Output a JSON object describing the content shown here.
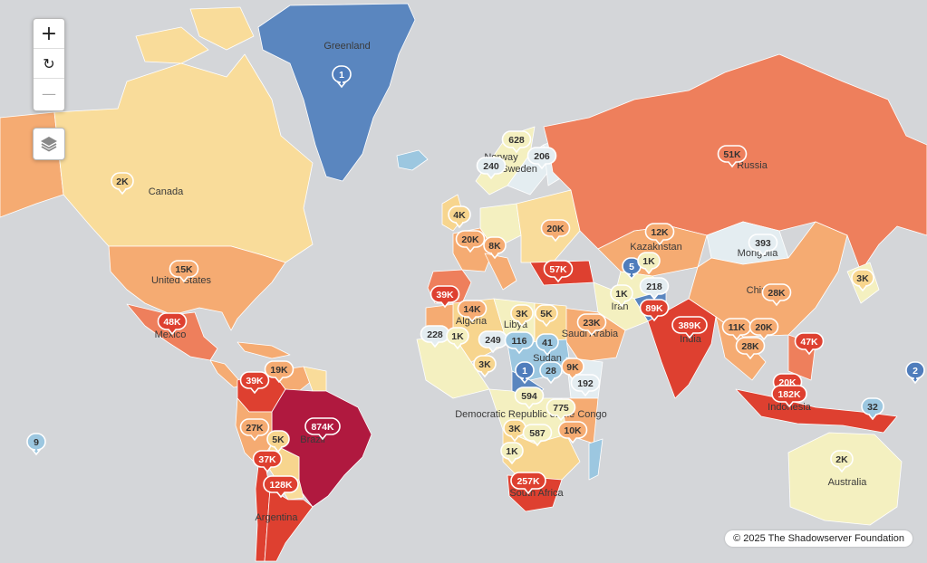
{
  "controls": {
    "zoom_in_label": "+",
    "reset_label": "↻",
    "zoom_out_label": "—",
    "layers_icon": "layers-icon"
  },
  "attribution": "© 2025 The Shadowserver Foundation",
  "legend_colors": {
    "lowest": "#4f7dbc",
    "low": "#9cc7e0",
    "light": "#e4edf1",
    "neutral": "#f4f0c0",
    "medium_low": "#f7d58e",
    "medium": "#f5ab72",
    "high": "#ee7f5c",
    "very_high": "#de4030",
    "highest": "#b0193f"
  },
  "country_labels": [
    "Greenland",
    "Canada",
    "United States",
    "Mexico",
    "Brazil",
    "Argentina",
    "Russia",
    "Kazakhstan",
    "Mongolia",
    "China",
    "Iran",
    "India",
    "Indonesia",
    "Australia",
    "Algeria",
    "Libya",
    "Sudan",
    "Saudi Arabia",
    "Democratic Republic of the Congo",
    "South Africa",
    "Norway",
    "Sweden"
  ],
  "markers": [
    {
      "value": "1",
      "level": "lowest"
    },
    {
      "value": "2K",
      "level": "medium_low"
    },
    {
      "value": "15K",
      "level": "medium"
    },
    {
      "value": "48K",
      "level": "very_high"
    },
    {
      "value": "39K",
      "level": "very_high"
    },
    {
      "value": "19K",
      "level": "medium"
    },
    {
      "value": "27K",
      "level": "medium"
    },
    {
      "value": "5K",
      "level": "medium_low"
    },
    {
      "value": "37K",
      "level": "very_high"
    },
    {
      "value": "874K",
      "level": "highest"
    },
    {
      "value": "128K",
      "level": "very_high"
    },
    {
      "value": "9",
      "level": "low"
    },
    {
      "value": "628",
      "level": "neutral"
    },
    {
      "value": "240",
      "level": "light"
    },
    {
      "value": "206",
      "level": "light"
    },
    {
      "value": "4K",
      "level": "medium_low"
    },
    {
      "value": "20K",
      "level": "medium"
    },
    {
      "value": "8K",
      "level": "medium"
    },
    {
      "value": "20K",
      "level": "medium"
    },
    {
      "value": "12K",
      "level": "medium"
    },
    {
      "value": "51K",
      "level": "high"
    },
    {
      "value": "393",
      "level": "light"
    },
    {
      "value": "1K",
      "level": "neutral"
    },
    {
      "value": "57K",
      "level": "very_high"
    },
    {
      "value": "39K",
      "level": "very_high"
    },
    {
      "value": "14K",
      "level": "medium"
    },
    {
      "value": "3K",
      "level": "medium_low"
    },
    {
      "value": "5K",
      "level": "medium_low"
    },
    {
      "value": "5",
      "level": "lowest"
    },
    {
      "value": "1K",
      "level": "neutral"
    },
    {
      "value": "218",
      "level": "light"
    },
    {
      "value": "89K",
      "level": "very_high"
    },
    {
      "value": "3K",
      "level": "medium_low"
    },
    {
      "value": "28K",
      "level": "medium"
    },
    {
      "value": "228",
      "level": "light"
    },
    {
      "value": "1K",
      "level": "neutral"
    },
    {
      "value": "249",
      "level": "light"
    },
    {
      "value": "116",
      "level": "low"
    },
    {
      "value": "41",
      "level": "low"
    },
    {
      "value": "23K",
      "level": "medium"
    },
    {
      "value": "389K",
      "level": "very_high"
    },
    {
      "value": "11K",
      "level": "medium"
    },
    {
      "value": "20K",
      "level": "medium"
    },
    {
      "value": "28K",
      "level": "medium"
    },
    {
      "value": "47K",
      "level": "very_high"
    },
    {
      "value": "3K",
      "level": "medium_low"
    },
    {
      "value": "1",
      "level": "lowest"
    },
    {
      "value": "28",
      "level": "low"
    },
    {
      "value": "9K",
      "level": "medium"
    },
    {
      "value": "192",
      "level": "light"
    },
    {
      "value": "594",
      "level": "neutral"
    },
    {
      "value": "775",
      "level": "neutral"
    },
    {
      "value": "20K",
      "level": "very_high"
    },
    {
      "value": "182K",
      "level": "very_high"
    },
    {
      "value": "32",
      "level": "low"
    },
    {
      "value": "2",
      "level": "lowest"
    },
    {
      "value": "3K",
      "level": "medium_low"
    },
    {
      "value": "587",
      "level": "neutral"
    },
    {
      "value": "10K",
      "level": "medium"
    },
    {
      "value": "1K",
      "level": "neutral"
    },
    {
      "value": "257K",
      "level": "very_high"
    },
    {
      "value": "2K",
      "level": "neutral"
    }
  ]
}
